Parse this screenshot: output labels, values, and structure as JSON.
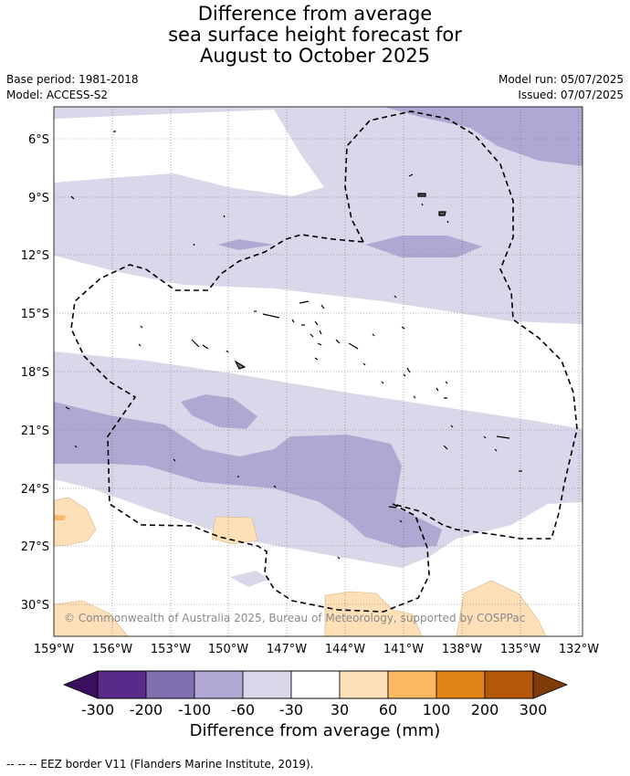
{
  "title": {
    "line1": "Difference from average",
    "line2": "sea surface height forecast for",
    "line3": "August to October 2025"
  },
  "meta": {
    "base_period": "Base period: 1981-2018",
    "model": "Model: ACCESS-S2",
    "model_run": "Model run: 05/07/2025",
    "issued": "Issued: 07/07/2025"
  },
  "map": {
    "lat_labels": [
      "6°S",
      "9°S",
      "12°S",
      "15°S",
      "18°S",
      "21°S",
      "24°S",
      "27°S",
      "30°S"
    ],
    "lon_labels": [
      "159°W",
      "156°W",
      "153°W",
      "150°W",
      "147°W",
      "144°W",
      "141°W",
      "138°W",
      "135°W",
      "132°W"
    ],
    "copyright": "© Commonwealth of Australia 2025, Bureau of Meteorology, supported by COSPPac"
  },
  "colorbar": {
    "labels": [
      "-300",
      "-200",
      "-100",
      "-60",
      "-30",
      "30",
      "60",
      "100",
      "200",
      "300"
    ],
    "colors": [
      "#3a0f5e",
      "#5a2a8a",
      "#8070b0",
      "#b0a8d2",
      "#d8d8ea",
      "#ffffff",
      "#fde0b8",
      "#fbb860",
      "#e28317",
      "#b35806",
      "#7f3b08"
    ],
    "title": "Difference from average (mm)"
  },
  "footnote": "--  --  -- EEZ border V11 (Flanders Marine Institute, 2019)."
}
